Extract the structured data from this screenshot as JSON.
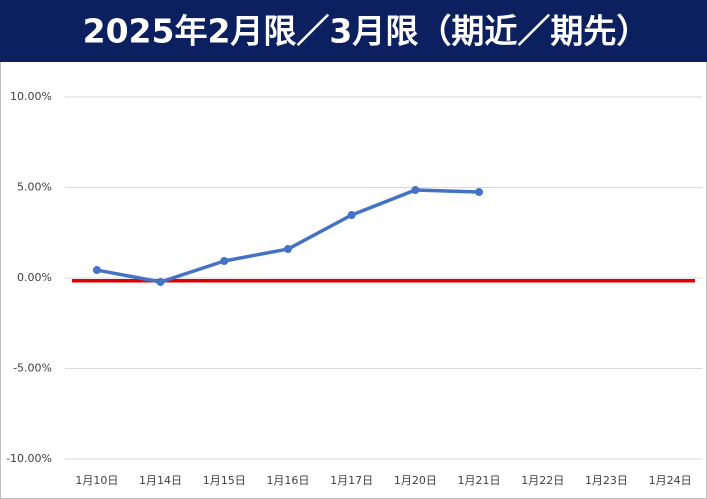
{
  "chart_data": {
    "type": "line",
    "title": "2025年2月限／3月限（期近／期先）",
    "categories": [
      "1月10日",
      "1月14日",
      "1月15日",
      "1月16日",
      "1月17日",
      "1月20日",
      "1月21日",
      "1月22日",
      "1月23日",
      "1月24日"
    ],
    "series": [
      {
        "color": "#4472c4",
        "values": [
          0.44,
          -0.22,
          0.94,
          1.6,
          3.48,
          4.86,
          4.75,
          null,
          null,
          null
        ]
      }
    ],
    "reference_line": {
      "value": -0.15,
      "color": "#e00000"
    },
    "ylim": [
      -10,
      10
    ],
    "yticks": [
      {
        "value": -10,
        "label": "-10.00%"
      },
      {
        "value": -5,
        "label": "-5.00%"
      },
      {
        "value": 0,
        "label": "0.00%"
      },
      {
        "value": 5,
        "label": "5.00%"
      },
      {
        "value": 10,
        "label": "10.00%"
      }
    ],
    "grid": true
  }
}
